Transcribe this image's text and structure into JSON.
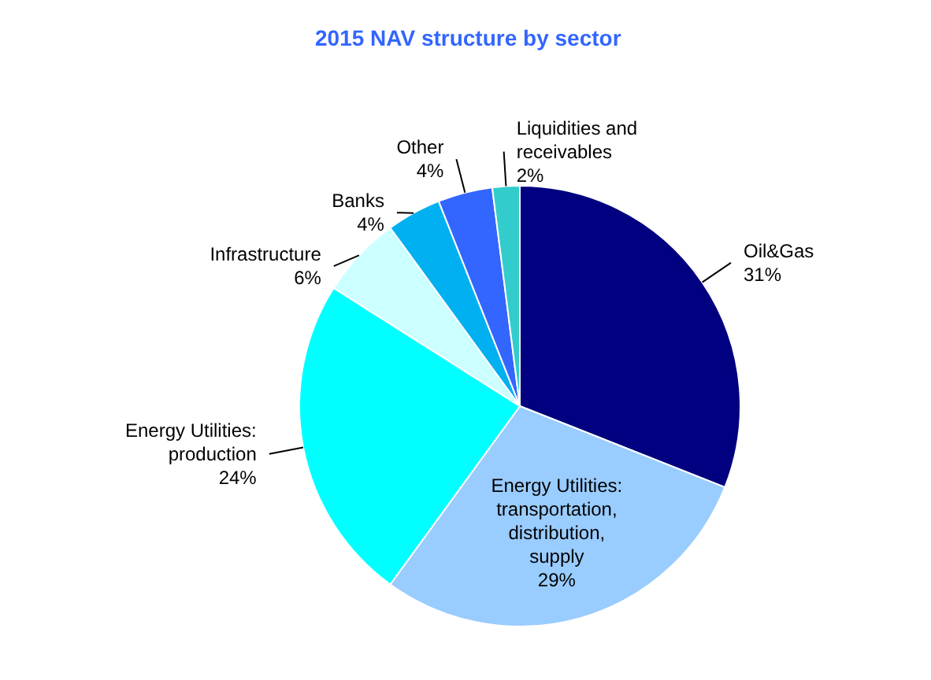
{
  "chart_data": {
    "type": "pie",
    "title": "2015 NAV structure by sector",
    "categories": [
      "Oil&Gas",
      "Energy Utilities: transportation, distribution, supply",
      "Energy Utilities: production",
      "Infrastructure",
      "Banks",
      "Other",
      "Liquidities and receivables"
    ],
    "values": [
      31,
      29,
      24,
      6,
      4,
      4,
      2
    ],
    "colors": [
      "#000080",
      "#99ccff",
      "#00ffff",
      "#ccffff",
      "#00b0f0",
      "#3366ff",
      "#33cccc"
    ],
    "value_labels": [
      "31%",
      "29%",
      "24%",
      "6%",
      "4%",
      "4%",
      "2%"
    ],
    "legend": false
  }
}
